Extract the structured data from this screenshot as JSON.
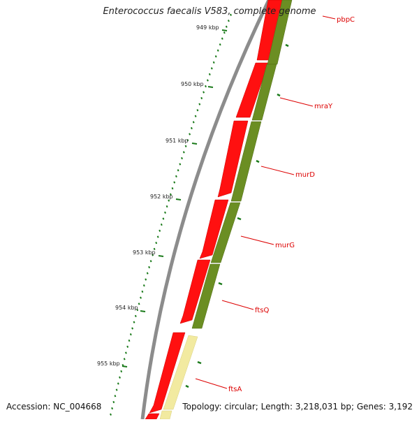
{
  "title": "Enterococcus faecalis V583, complete genome",
  "footer": {
    "accession": "Accession: NC_004668",
    "summary": "Topology: circular; Length: 3,218,031 bp; Genes: 3,192"
  },
  "colors": {
    "backbone": "#8c8c8c",
    "cds_forward": "#ff1010",
    "cds_track": "#6b8e23",
    "cds_light": "#f2eaa0",
    "tick": "#1a7a1a",
    "label_line": "#dd0000"
  },
  "scale_labels": [
    "949 kbp",
    "950 kbp",
    "951 kbp",
    "952 kbp",
    "953 kbp",
    "954 kbp",
    "955 kbp"
  ],
  "genes": [
    "pbpC",
    "mraY",
    "murD",
    "murG",
    "ftsQ",
    "ftsA"
  ]
}
